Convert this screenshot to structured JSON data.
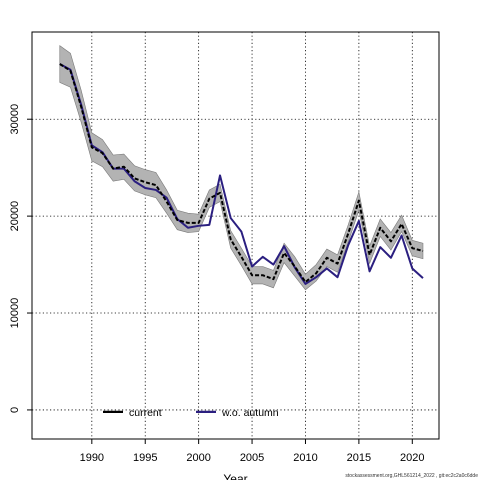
{
  "chart_data": {
    "type": "line",
    "title": "",
    "xlabel": "Year",
    "ylabel": "",
    "xlim": [
      1984.4,
      2022.5
    ],
    "ylim": [
      -3000,
      39000
    ],
    "x_ticks": [
      1990,
      1995,
      2000,
      2005,
      2010,
      2015,
      2020
    ],
    "y_ticks": [
      0,
      10000,
      20000,
      30000
    ],
    "y_tick_labels": [
      "0",
      "10000",
      "20000",
      "30000"
    ],
    "grid": true,
    "legend_position": "bottom-left",
    "x": [
      1987,
      1988,
      1989,
      1990,
      1991,
      1992,
      1993,
      1994,
      1995,
      1996,
      1997,
      1998,
      1999,
      2000,
      2001,
      2002,
      2003,
      2004,
      2005,
      2006,
      2007,
      2008,
      2009,
      2010,
      2011,
      2012,
      2013,
      2014,
      2015,
      2016,
      2017,
      2018,
      2019,
      2020,
      2021
    ],
    "series": [
      {
        "name": "current",
        "color": "#000000",
        "dash": true,
        "values": [
          35700,
          35000,
          31300,
          27100,
          26500,
          24900,
          25100,
          23900,
          23500,
          23200,
          21500,
          19600,
          19300,
          19300,
          21800,
          22400,
          17600,
          15800,
          13900,
          13900,
          13500,
          16200,
          14800,
          13200,
          14100,
          15700,
          15100,
          18200,
          21600,
          16000,
          18800,
          17400,
          19200,
          16700,
          16400
        ],
        "ci_lower": [
          33800,
          33300,
          29700,
          25700,
          25100,
          23600,
          23800,
          22600,
          22200,
          21900,
          20300,
          18600,
          18300,
          18400,
          20900,
          21500,
          16700,
          14900,
          13000,
          13000,
          12600,
          15200,
          13800,
          12400,
          13300,
          14800,
          14200,
          17300,
          20600,
          15100,
          17900,
          16500,
          18400,
          15900,
          15600
        ],
        "ci_upper": [
          37600,
          36800,
          33000,
          28600,
          27900,
          26300,
          26400,
          25200,
          24800,
          24500,
          22700,
          20600,
          20300,
          20200,
          22700,
          23300,
          18500,
          16700,
          14800,
          14800,
          14400,
          17200,
          15800,
          14000,
          15000,
          16600,
          16000,
          19100,
          22500,
          16900,
          19700,
          18300,
          20100,
          17500,
          17200
        ]
      },
      {
        "name": "w.o. autumn",
        "color": "#2b1f80",
        "dash": false,
        "values": [
          35700,
          35100,
          31500,
          27300,
          26600,
          24900,
          24900,
          23600,
          22900,
          22700,
          21900,
          19700,
          18800,
          19000,
          19100,
          24200,
          19800,
          18400,
          14800,
          15800,
          15000,
          16900,
          14700,
          13000,
          13700,
          14600,
          13700,
          17000,
          19500,
          14300,
          16800,
          15700,
          18000,
          14600,
          13600
        ]
      }
    ]
  },
  "footer": "stockassessment.org,GHL561214_2022 , git:ec2c2a0c6dde"
}
